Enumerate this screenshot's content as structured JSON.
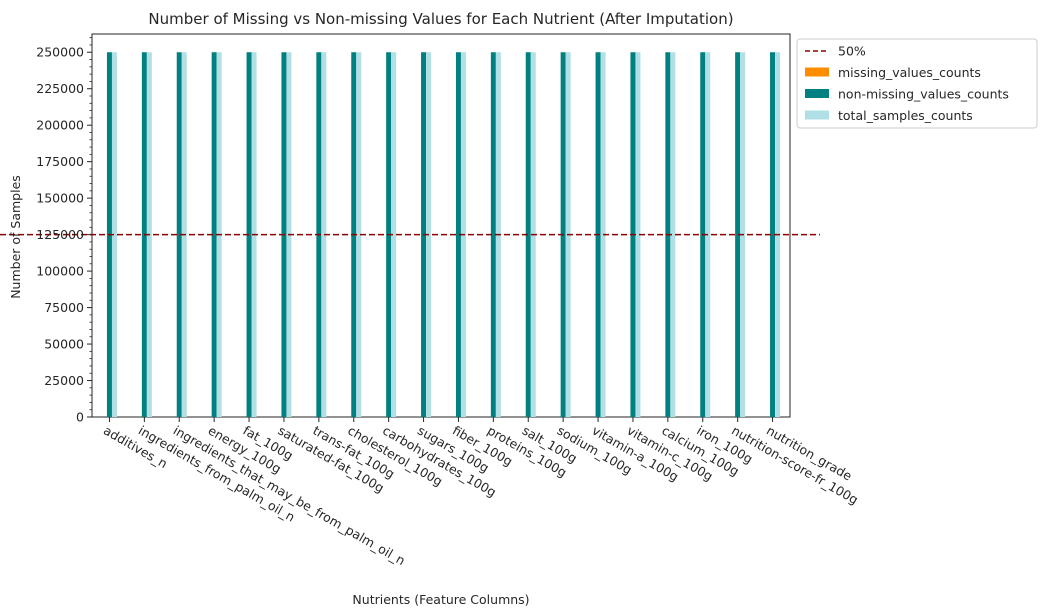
{
  "chart_data": {
    "type": "bar",
    "title": "Number of Missing vs Non-missing Values for Each Nutrient (After Imputation)",
    "xlabel": "Nutrients (Feature Columns)",
    "ylabel": "Number of Samples",
    "ylim": [
      0,
      262500
    ],
    "yticks": [
      0,
      25000,
      50000,
      75000,
      100000,
      125000,
      150000,
      175000,
      200000,
      225000,
      250000
    ],
    "ytick_labels": [
      "0",
      "25000",
      "50000",
      "75000",
      "100000",
      "125000",
      "150000",
      "175000",
      "200000",
      "225000",
      "250000"
    ],
    "grid": false,
    "legend_position": "outside-top-right",
    "categories": [
      "additives_n",
      "ingredients_from_palm_oil_n",
      "ingredients_that_may_be_from_palm_oil_n",
      "energy_100g",
      "fat_100g",
      "saturated-fat_100g",
      "trans-fat_100g",
      "cholesterol_100g",
      "carbohydrates_100g",
      "sugars_100g",
      "fiber_100g",
      "proteins_100g",
      "salt_100g",
      "sodium_100g",
      "vitamin-a_100g",
      "vitamin-c_100g",
      "calcium_100g",
      "iron_100g",
      "nutrition-score-fr_100g",
      "nutrition_grade"
    ],
    "series": [
      {
        "name": "missing_values_counts",
        "color": "#ff8c00",
        "values": [
          0,
          0,
          0,
          0,
          0,
          0,
          0,
          0,
          0,
          0,
          0,
          0,
          0,
          0,
          0,
          0,
          0,
          0,
          0,
          0
        ]
      },
      {
        "name": "non-missing_values_counts",
        "color": "#008080",
        "values": [
          250000,
          250000,
          250000,
          250000,
          250000,
          250000,
          250000,
          250000,
          250000,
          250000,
          250000,
          250000,
          250000,
          250000,
          250000,
          250000,
          250000,
          250000,
          250000,
          250000
        ]
      },
      {
        "name": "total_samples_counts",
        "color": "#b0e0e6",
        "values": [
          250000,
          250000,
          250000,
          250000,
          250000,
          250000,
          250000,
          250000,
          250000,
          250000,
          250000,
          250000,
          250000,
          250000,
          250000,
          250000,
          250000,
          250000,
          250000,
          250000
        ]
      }
    ],
    "reference_line": {
      "label": "50%",
      "value": 125000,
      "color": "#8b0000",
      "style": "dashed"
    }
  }
}
